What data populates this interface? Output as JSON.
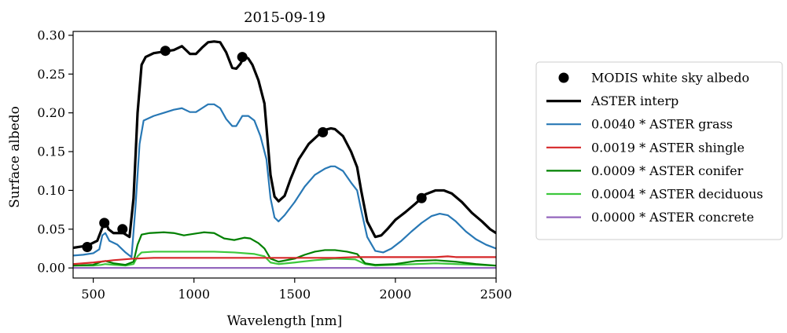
{
  "chart_data": {
    "type": "line",
    "title": "2015-09-19",
    "xlabel": "Wavelength [nm]",
    "ylabel": "Surface albedo",
    "xlim": [
      400,
      2500
    ],
    "ylim": [
      -0.013,
      0.305
    ],
    "xticks": [
      500,
      1000,
      1500,
      2000,
      2500
    ],
    "xtick_labels": [
      "500",
      "1000",
      "1500",
      "2000",
      "2500"
    ],
    "yticks": [
      0.0,
      0.05,
      0.1,
      0.15,
      0.2,
      0.25,
      0.3
    ],
    "ytick_labels": [
      "0.00",
      "0.05",
      "0.10",
      "0.15",
      "0.20",
      "0.25",
      "0.30"
    ],
    "grid": false,
    "legend_position": "right, outside plot",
    "points": {
      "name": "MODIS white sky albedo",
      "color": "#000000",
      "x": [
        470,
        555,
        645,
        858,
        1240,
        1640,
        2130
      ],
      "y": [
        0.027,
        0.058,
        0.05,
        0.28,
        0.272,
        0.175,
        0.09
      ]
    },
    "series": [
      {
        "name": "ASTER interp",
        "color": "#000000",
        "x": [
          400,
          450,
          480,
          520,
          545,
          560,
          575,
          600,
          650,
          680,
          700,
          720,
          740,
          760,
          800,
          850,
          900,
          940,
          980,
          1010,
          1040,
          1070,
          1100,
          1130,
          1160,
          1190,
          1210,
          1230,
          1250,
          1270,
          1290,
          1320,
          1350,
          1380,
          1400,
          1420,
          1450,
          1480,
          1520,
          1570,
          1620,
          1650,
          1680,
          1700,
          1740,
          1780,
          1810,
          1830,
          1860,
          1900,
          1930,
          1960,
          2000,
          2050,
          2100,
          2150,
          2200,
          2240,
          2280,
          2330,
          2380,
          2430,
          2470,
          2500
        ],
        "y": [
          0.026,
          0.028,
          0.03,
          0.035,
          0.052,
          0.062,
          0.05,
          0.045,
          0.045,
          0.04,
          0.09,
          0.2,
          0.262,
          0.272,
          0.277,
          0.279,
          0.281,
          0.286,
          0.276,
          0.276,
          0.284,
          0.291,
          0.292,
          0.291,
          0.278,
          0.258,
          0.257,
          0.263,
          0.273,
          0.27,
          0.262,
          0.242,
          0.212,
          0.12,
          0.092,
          0.086,
          0.093,
          0.115,
          0.14,
          0.16,
          0.172,
          0.178,
          0.18,
          0.179,
          0.17,
          0.15,
          0.13,
          0.1,
          0.06,
          0.04,
          0.042,
          0.05,
          0.062,
          0.072,
          0.083,
          0.095,
          0.1,
          0.1,
          0.096,
          0.085,
          0.071,
          0.06,
          0.05,
          0.045
        ]
      },
      {
        "name": "0.0040 * ASTER grass",
        "color": "#2878b5",
        "x": [
          400,
          450,
          500,
          530,
          545,
          560,
          580,
          620,
          660,
          690,
          710,
          730,
          750,
          800,
          850,
          900,
          940,
          980,
          1010,
          1040,
          1070,
          1100,
          1130,
          1160,
          1190,
          1210,
          1240,
          1270,
          1300,
          1330,
          1360,
          1380,
          1400,
          1420,
          1450,
          1500,
          1550,
          1600,
          1650,
          1680,
          1700,
          1740,
          1780,
          1810,
          1830,
          1860,
          1900,
          1940,
          1980,
          2030,
          2080,
          2130,
          2180,
          2220,
          2260,
          2300,
          2350,
          2400,
          2450,
          2500
        ],
        "y": [
          0.016,
          0.017,
          0.019,
          0.024,
          0.042,
          0.045,
          0.035,
          0.03,
          0.02,
          0.014,
          0.08,
          0.16,
          0.19,
          0.196,
          0.2,
          0.204,
          0.206,
          0.201,
          0.201,
          0.206,
          0.211,
          0.211,
          0.206,
          0.192,
          0.183,
          0.183,
          0.196,
          0.196,
          0.19,
          0.17,
          0.14,
          0.09,
          0.065,
          0.06,
          0.068,
          0.085,
          0.105,
          0.12,
          0.128,
          0.131,
          0.131,
          0.125,
          0.11,
          0.1,
          0.075,
          0.04,
          0.022,
          0.02,
          0.025,
          0.035,
          0.047,
          0.058,
          0.067,
          0.07,
          0.068,
          0.06,
          0.047,
          0.037,
          0.03,
          0.025
        ]
      },
      {
        "name": "0.0019 * ASTER shingle",
        "color": "#d62728",
        "x": [
          400,
          500,
          600,
          700,
          800,
          900,
          1000,
          1100,
          1200,
          1300,
          1400,
          1500,
          1600,
          1700,
          1800,
          1900,
          2000,
          2100,
          2200,
          2260,
          2300,
          2400,
          2500
        ],
        "y": [
          0.005,
          0.007,
          0.01,
          0.012,
          0.013,
          0.013,
          0.013,
          0.013,
          0.013,
          0.013,
          0.013,
          0.013,
          0.013,
          0.013,
          0.014,
          0.014,
          0.014,
          0.014,
          0.014,
          0.015,
          0.014,
          0.014,
          0.014
        ]
      },
      {
        "name": "0.0009 * ASTER conifer",
        "color": "#008000",
        "x": [
          400,
          500,
          540,
          560,
          600,
          660,
          700,
          720,
          740,
          780,
          850,
          900,
          950,
          1000,
          1050,
          1100,
          1150,
          1200,
          1250,
          1280,
          1320,
          1350,
          1380,
          1420,
          1500,
          1550,
          1600,
          1650,
          1700,
          1760,
          1810,
          1850,
          1900,
          2000,
          2100,
          2200,
          2300,
          2400,
          2500
        ],
        "y": [
          0.003,
          0.004,
          0.008,
          0.009,
          0.006,
          0.004,
          0.008,
          0.03,
          0.043,
          0.045,
          0.046,
          0.045,
          0.042,
          0.044,
          0.046,
          0.045,
          0.038,
          0.036,
          0.039,
          0.038,
          0.032,
          0.025,
          0.012,
          0.008,
          0.012,
          0.017,
          0.021,
          0.023,
          0.023,
          0.021,
          0.018,
          0.006,
          0.004,
          0.005,
          0.009,
          0.01,
          0.008,
          0.005,
          0.003
        ]
      },
      {
        "name": "0.0004 * ASTER deciduous",
        "color": "#3cc83c",
        "x": [
          400,
          500,
          540,
          560,
          600,
          660,
          700,
          720,
          740,
          800,
          900,
          1000,
          1100,
          1200,
          1300,
          1350,
          1380,
          1420,
          1500,
          1600,
          1700,
          1800,
          1850,
          1900,
          2000,
          2100,
          2200,
          2300,
          2400,
          2500
        ],
        "y": [
          0.003,
          0.003,
          0.004,
          0.005,
          0.004,
          0.003,
          0.005,
          0.015,
          0.02,
          0.021,
          0.021,
          0.021,
          0.021,
          0.02,
          0.018,
          0.015,
          0.007,
          0.005,
          0.007,
          0.01,
          0.012,
          0.011,
          0.005,
          0.003,
          0.004,
          0.005,
          0.006,
          0.005,
          0.004,
          0.003
        ]
      },
      {
        "name": "0.0000 * ASTER concrete",
        "color": "#9467bd",
        "x": [
          400,
          2500
        ],
        "y": [
          0.0,
          0.0
        ]
      }
    ]
  }
}
